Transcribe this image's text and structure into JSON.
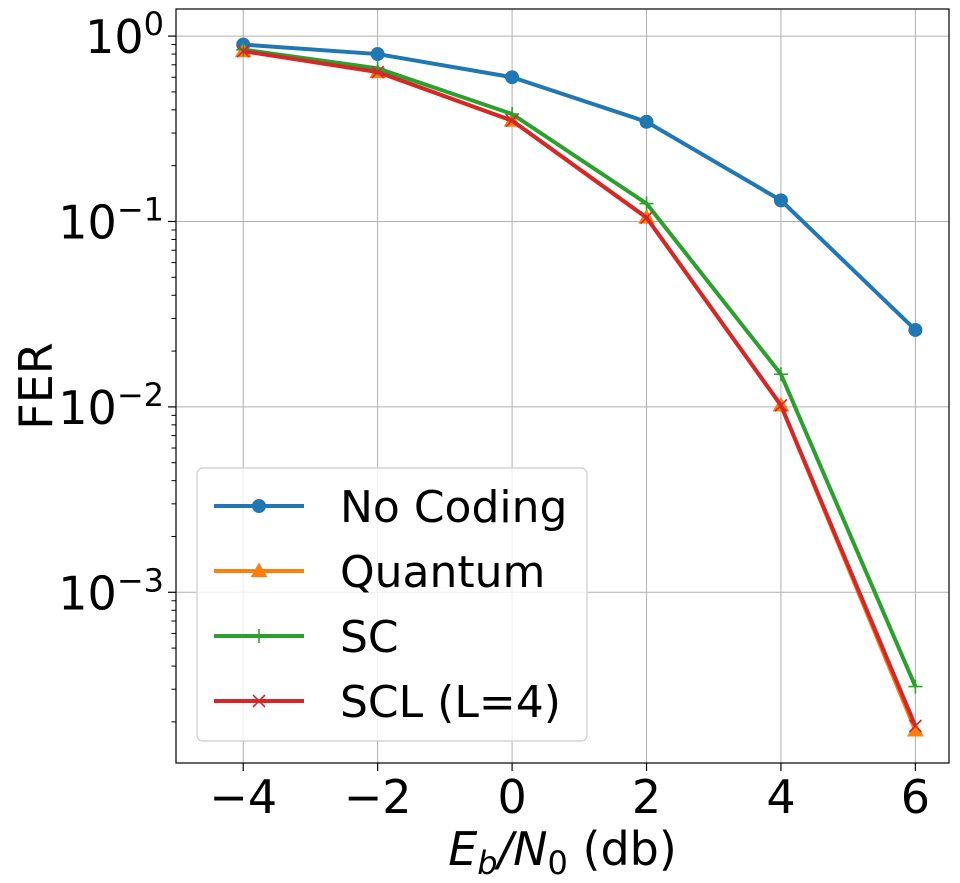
{
  "chart_data": {
    "type": "line",
    "yscale": "log",
    "xlabel": {
      "main": "E",
      "sub1": "b",
      "mid": "/N",
      "sub2": "0",
      "tail": " (db)"
    },
    "ylabel": "FER",
    "x": [
      -4,
      -2,
      0,
      2,
      4,
      6
    ],
    "xlim": [
      -5,
      6.5
    ],
    "ylim": [
      0.00012,
      1.4
    ],
    "grid": true,
    "legend_position": "lower-left",
    "x_ticks": [
      {
        "value": -4,
        "label": "−4"
      },
      {
        "value": -2,
        "label": "−2"
      },
      {
        "value": 0,
        "label": "0"
      },
      {
        "value": 2,
        "label": "2"
      },
      {
        "value": 4,
        "label": "4"
      },
      {
        "value": 6,
        "label": "6"
      }
    ],
    "y_ticks": [
      {
        "value": 1,
        "base": "10",
        "exp": "0"
      },
      {
        "value": 0.1,
        "base": "10",
        "exp": "−1"
      },
      {
        "value": 0.01,
        "base": "10",
        "exp": "−2"
      },
      {
        "value": 0.001,
        "base": "10",
        "exp": "−3"
      }
    ],
    "series": [
      {
        "name": "No Coding",
        "color": "#1f77b4",
        "marker": "circle",
        "values": [
          0.9,
          0.8,
          0.6,
          0.345,
          0.13,
          0.026
        ]
      },
      {
        "name": "Quantum",
        "color": "#ff7f0e",
        "marker": "triangle",
        "values": [
          0.83,
          0.64,
          0.35,
          0.105,
          0.0102,
          0.00018
        ]
      },
      {
        "name": "SC",
        "color": "#2ca02c",
        "marker": "plus",
        "values": [
          0.845,
          0.67,
          0.38,
          0.125,
          0.015,
          0.00031
        ]
      },
      {
        "name": "SCL (L=4)",
        "color": "#d62728",
        "marker": "x",
        "values": [
          0.83,
          0.64,
          0.35,
          0.105,
          0.0102,
          0.00019
        ]
      }
    ]
  }
}
